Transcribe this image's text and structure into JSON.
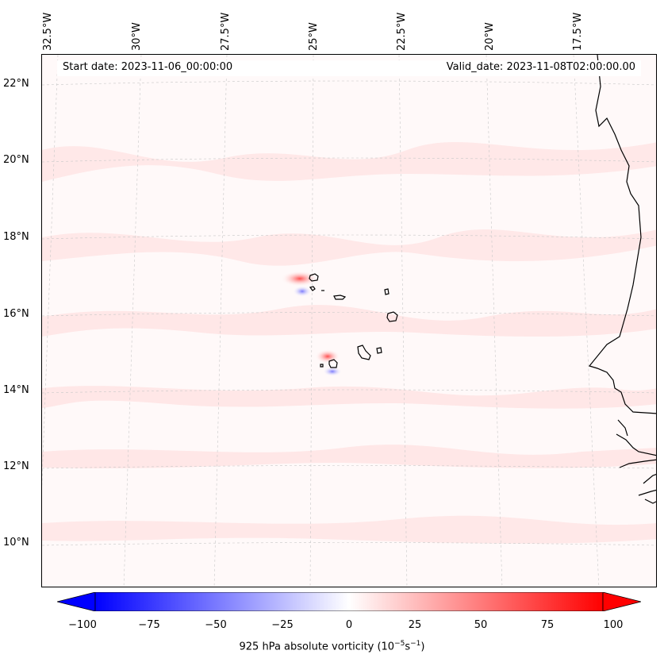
{
  "map": {
    "start_date": "Start date: 2023-11-06_00:00:00",
    "valid_date": "Valid_date: 2023-11-08T02:00:00.00",
    "lon_labels": [
      "32.5°W",
      "30°W",
      "27.5°W",
      "25°W",
      "22.5°W",
      "20°W",
      "17.5°W"
    ],
    "lat_labels": [
      "22°N",
      "20°N",
      "18°N",
      "16°N",
      "14°N",
      "12°N",
      "10°N"
    ],
    "field": "925 hPa absolute vorticity",
    "features": [
      "Cape Verde islands",
      "West African coastline"
    ]
  },
  "colorbar": {
    "ticks": [
      "−100",
      "−75",
      "−50",
      "−25",
      "0",
      "25",
      "50",
      "75",
      "100"
    ],
    "label": "925 hPa absolute vorticity (10",
    "label_exp1": "−5",
    "label_mid": "s",
    "label_exp2": "−1",
    "label_end": ")",
    "min": -100,
    "max": 100,
    "colors": {
      "low": "#0000ff",
      "mid": "#ffffff",
      "high": "#ff0000"
    }
  }
}
